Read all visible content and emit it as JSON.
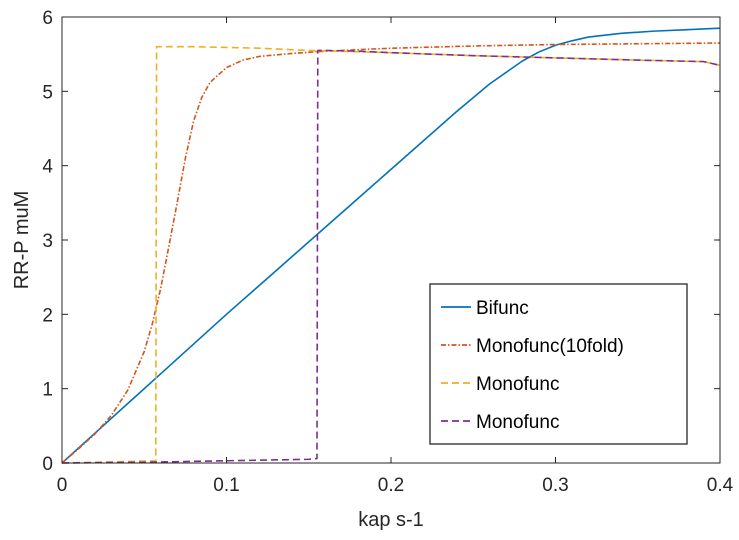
{
  "chart_data": {
    "type": "line",
    "xlabel": "kap s-1",
    "ylabel": "RR-P muM",
    "xlim": [
      0,
      0.4
    ],
    "ylim": [
      0,
      6
    ],
    "xticks": [
      0,
      0.1,
      0.2,
      0.3,
      0.4
    ],
    "xtick_labels": [
      "0",
      "0.1",
      "0.2",
      "0.3",
      "0.4"
    ],
    "yticks": [
      0,
      1,
      2,
      3,
      4,
      5,
      6
    ],
    "ytick_labels": [
      "0",
      "1",
      "2",
      "3",
      "4",
      "5",
      "6"
    ],
    "grid": false,
    "legend_position": "bottom-right",
    "series": [
      {
        "name": "Bifunc",
        "color": "#0072BD",
        "dash": "solid",
        "x": [
          0,
          0.02,
          0.04,
          0.06,
          0.08,
          0.1,
          0.12,
          0.14,
          0.16,
          0.18,
          0.2,
          0.22,
          0.24,
          0.26,
          0.28,
          0.29,
          0.3,
          0.31,
          0.32,
          0.34,
          0.36,
          0.38,
          0.4
        ],
        "y": [
          0,
          0.4,
          0.8,
          1.2,
          1.6,
          2.0,
          2.39,
          2.78,
          3.17,
          3.56,
          3.95,
          4.34,
          4.73,
          5.1,
          5.41,
          5.53,
          5.62,
          5.68,
          5.73,
          5.78,
          5.81,
          5.83,
          5.85
        ]
      },
      {
        "name": "Monofunc(10fold)",
        "color": "#D95319",
        "dash": "dashdot",
        "x": [
          0,
          0.01,
          0.02,
          0.03,
          0.04,
          0.05,
          0.055,
          0.06,
          0.065,
          0.07,
          0.075,
          0.08,
          0.085,
          0.09,
          0.1,
          0.11,
          0.12,
          0.14,
          0.16,
          0.2,
          0.25,
          0.3,
          0.35,
          0.4
        ],
        "y": [
          0,
          0.19,
          0.39,
          0.64,
          0.98,
          1.5,
          1.88,
          2.35,
          2.92,
          3.5,
          4.1,
          4.6,
          4.92,
          5.12,
          5.32,
          5.42,
          5.47,
          5.51,
          5.54,
          5.58,
          5.61,
          5.63,
          5.64,
          5.65
        ]
      },
      {
        "name": "Monofunc",
        "color": "#EDB120",
        "dash": "dashed",
        "x": [
          0,
          0.02,
          0.04,
          0.057,
          0.0575,
          0.06,
          0.08,
          0.1,
          0.12,
          0.15,
          0.2,
          0.25,
          0.3,
          0.35,
          0.39,
          0.4
        ],
        "y": [
          0,
          0.01,
          0.02,
          0.03,
          5.6,
          5.6,
          5.6,
          5.59,
          5.58,
          5.55,
          5.52,
          5.48,
          5.45,
          5.42,
          5.4,
          5.35
        ]
      },
      {
        "name": "Monofunc",
        "color": "#7E2F8E",
        "dash": "dashed",
        "x": [
          0,
          0.05,
          0.1,
          0.15,
          0.155,
          0.1555,
          0.16,
          0.18,
          0.2,
          0.25,
          0.3,
          0.35,
          0.39,
          0.4
        ],
        "y": [
          0,
          0.01,
          0.03,
          0.05,
          0.06,
          5.55,
          5.55,
          5.54,
          5.52,
          5.48,
          5.45,
          5.42,
          5.4,
          5.35
        ]
      }
    ]
  }
}
